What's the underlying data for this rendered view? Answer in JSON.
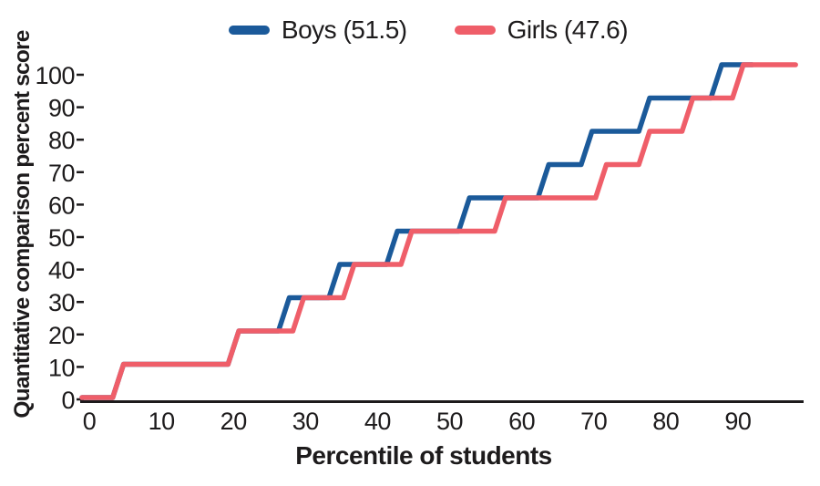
{
  "legend": {
    "items": [
      {
        "label": "Boys (51.5)",
        "color": "#1b5a9a"
      },
      {
        "label": "Girls (47.6)",
        "color": "#ef5e69"
      }
    ]
  },
  "chart_data": {
    "type": "line",
    "subtype": "step-percentile-curve",
    "title": "",
    "xlabel": "Percentile of students",
    "ylabel": "Quantitative comparison percent score",
    "xlim": [
      0,
      100
    ],
    "ylim": [
      0,
      100
    ],
    "x_ticks": [
      0,
      10,
      20,
      30,
      40,
      50,
      60,
      70,
      80,
      90
    ],
    "y_ticks": [
      0,
      10,
      20,
      30,
      40,
      50,
      60,
      70,
      80,
      90,
      100
    ],
    "grid": false,
    "legend_position": "top-center",
    "axis_color": "#1d1b1c",
    "series": [
      {
        "name": "Boys",
        "legend_label": "Boys (51.5)",
        "mean_score": 51.5,
        "color": "#1b5a9a",
        "start": [
          0,
          0
        ],
        "steps_reach_percentile_score": [
          [
            4,
            10
          ],
          [
            20,
            20
          ],
          [
            27,
            30
          ],
          [
            34,
            40
          ],
          [
            42,
            50
          ],
          [
            52,
            60
          ],
          [
            63,
            70
          ],
          [
            69,
            80
          ],
          [
            77,
            90
          ],
          [
            87,
            100
          ]
        ],
        "end": [
          92,
          100
        ]
      },
      {
        "name": "Girls",
        "legend_label": "Girls (47.6)",
        "mean_score": 47.6,
        "color": "#ef5e69",
        "start": [
          0,
          0
        ],
        "steps_reach_percentile_score": [
          [
            4,
            10
          ],
          [
            20,
            20
          ],
          [
            29,
            30
          ],
          [
            36,
            40
          ],
          [
            44,
            50
          ],
          [
            57,
            60
          ],
          [
            71,
            70
          ],
          [
            77,
            80
          ],
          [
            83,
            90
          ],
          [
            90,
            100
          ]
        ],
        "end": [
          98,
          100
        ]
      }
    ]
  }
}
